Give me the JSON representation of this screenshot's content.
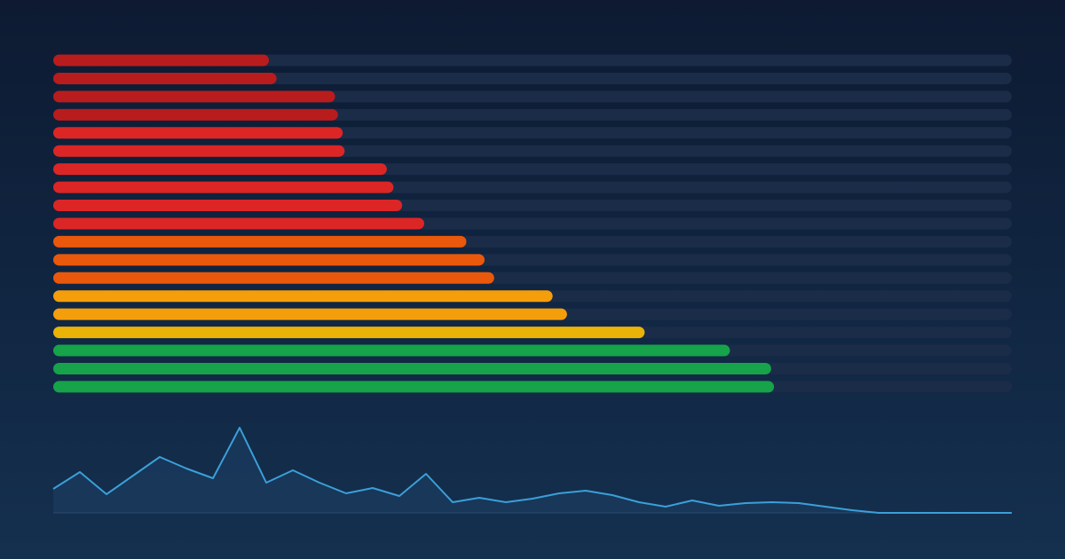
{
  "chart_data": [
    {
      "type": "bar",
      "orientation": "horizontal",
      "categories": [
        null,
        null,
        null,
        null,
        null,
        null,
        null,
        null,
        null,
        null,
        null,
        null,
        null,
        null,
        null,
        null,
        null,
        null,
        null
      ],
      "values": [
        22.5,
        23.3,
        29.4,
        29.7,
        30.2,
        30.4,
        34.8,
        35.5,
        36.4,
        38.7,
        43.1,
        45.0,
        46.0,
        52.1,
        53.6,
        61.7,
        70.6,
        74.9,
        75.2
      ],
      "colors": [
        "#b91c1c",
        "#b91c1c",
        "#b91c1c",
        "#b91c1c",
        "#dc2626",
        "#dc2626",
        "#dc2626",
        "#dc2626",
        "#dc2626",
        "#dc2626",
        "#ea580c",
        "#ea580c",
        "#ea580c",
        "#f59e0b",
        "#f59e0b",
        "#eab308",
        "#16a34a",
        "#16a34a",
        "#16a34a"
      ],
      "track_color": "#1b2c48",
      "xlim": [
        0,
        100
      ]
    },
    {
      "type": "area",
      "categories": [
        null,
        null,
        null,
        null,
        null,
        null,
        null,
        null,
        null,
        null,
        null,
        null,
        null,
        null,
        null,
        null,
        null,
        null,
        null,
        null,
        null,
        null,
        null,
        null,
        null,
        null,
        null,
        null,
        null,
        null,
        null,
        null,
        null,
        null,
        null,
        null,
        null
      ],
      "values": [
        27,
        46,
        21,
        42,
        63,
        50,
        39,
        96,
        34,
        48,
        34,
        22,
        28,
        19,
        44,
        12,
        17,
        12,
        16,
        22,
        25,
        20,
        12,
        7,
        14,
        8,
        11,
        12,
        11,
        7,
        3,
        0,
        0,
        0,
        0,
        0,
        0
      ],
      "color": "#3b9fd8",
      "fill_color": "#1a3a5c",
      "ylim": [
        0,
        100
      ]
    }
  ]
}
